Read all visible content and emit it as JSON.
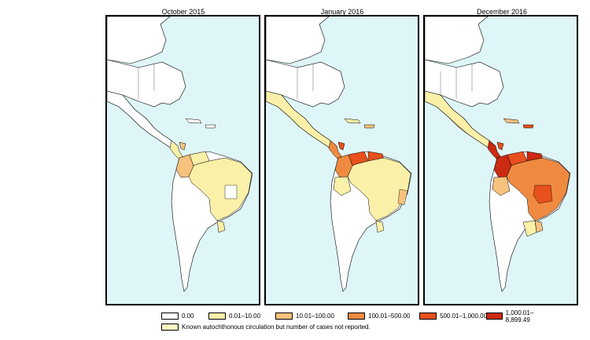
{
  "panels": [
    {
      "title": "October 2015"
    },
    {
      "title": "January 2016"
    },
    {
      "title": "December 2016"
    }
  ],
  "legend": {
    "items": [
      {
        "label": "0.00",
        "color": "#ffffff"
      },
      {
        "label": "0.01–10.00",
        "color": "#fbf0a8"
      },
      {
        "label": "10.01–100.00",
        "color": "#f7c27e"
      },
      {
        "label": "100.01–500.00",
        "color": "#f08a40"
      },
      {
        "label": "500.01–1,000.00",
        "color": "#e8501c"
      },
      {
        "label": "1,000.01–8,899.49",
        "color": "#cc2a12"
      }
    ],
    "note": {
      "label": "Known autochthonous circulation but number of cases not reported.",
      "color": "#fbf6c4"
    }
  },
  "colors": {
    "ocean": "#dff6f8",
    "border": "#000000"
  }
}
